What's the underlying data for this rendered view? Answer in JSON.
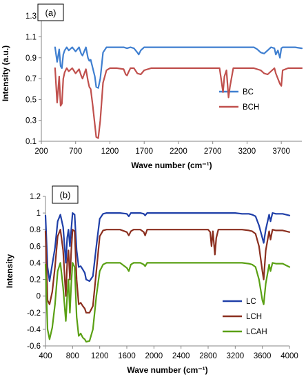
{
  "chart_data": [
    {
      "type": "line",
      "panel_label": "(a)",
      "xlabel": "Wave number (cm⁻¹)",
      "ylabel": "Intensity (a.u.)",
      "xlim": [
        200,
        4000
      ],
      "ylim": [
        0.1,
        1.4
      ],
      "x_ticks": [
        "200",
        "700",
        "1200",
        "1700",
        "2200",
        "2700",
        "3200",
        "3700"
      ],
      "y_ticks": [
        "0.1",
        "0.3",
        "0.5",
        "0.7",
        "0.9",
        "1.1",
        "1.3"
      ],
      "grid": false,
      "legend_position": "center-right",
      "colors": {
        "BC": "#3f7fd0",
        "BCH": "#c0504d"
      },
      "series": [
        {
          "name": "BC",
          "x": [
            400,
            430,
            460,
            480,
            500,
            520,
            540,
            570,
            600,
            650,
            700,
            750,
            780,
            800,
            850,
            880,
            900,
            920,
            950,
            980,
            1000,
            1030,
            1060,
            1100,
            1150,
            1200,
            1400,
            1450,
            1500,
            1550,
            1600,
            1620,
            1650,
            1700,
            1800,
            2000,
            2500,
            3000,
            3200,
            3300,
            3350,
            3400,
            3450,
            3500,
            3550,
            3600,
            3620,
            3650,
            3680,
            3700,
            3720,
            3800,
            3900,
            4000
          ],
          "values": [
            1.0,
            0.86,
            0.98,
            0.82,
            0.8,
            0.93,
            0.97,
            1.0,
            0.97,
            1.0,
            0.96,
            1.0,
            0.94,
            0.92,
            1.0,
            0.9,
            0.87,
            0.88,
            0.8,
            0.72,
            0.62,
            0.61,
            0.7,
            0.95,
            1.0,
            1.0,
            1.0,
            0.99,
            1.0,
            0.99,
            0.95,
            0.93,
            0.97,
            1.0,
            1.0,
            1.0,
            1.0,
            1.0,
            1.0,
            1.0,
            0.98,
            0.95,
            0.94,
            0.97,
            1.0,
            0.99,
            0.93,
            0.97,
            0.9,
            0.99,
            1.0,
            1.0,
            1.0,
            0.99
          ]
        },
        {
          "name": "BCH",
          "x": [
            400,
            430,
            460,
            480,
            500,
            520,
            540,
            570,
            600,
            650,
            700,
            750,
            780,
            800,
            850,
            880,
            900,
            920,
            950,
            980,
            1000,
            1030,
            1060,
            1100,
            1150,
            1200,
            1300,
            1400,
            1430,
            1450,
            1470,
            1500,
            1550,
            1600,
            1650,
            1700,
            1800,
            2000,
            2500,
            2800,
            2850,
            2870,
            2900,
            2930,
            2950,
            3000,
            3200,
            3300,
            3400,
            3450,
            3500,
            3550,
            3600,
            3620,
            3650,
            3680,
            3700,
            3720,
            3800,
            4000
          ],
          "values": [
            0.8,
            0.47,
            0.72,
            0.44,
            0.46,
            0.7,
            0.76,
            0.8,
            0.77,
            0.8,
            0.75,
            0.79,
            0.73,
            0.7,
            0.79,
            0.68,
            0.62,
            0.6,
            0.44,
            0.26,
            0.14,
            0.13,
            0.3,
            0.66,
            0.78,
            0.8,
            0.8,
            0.79,
            0.74,
            0.73,
            0.76,
            0.8,
            0.8,
            0.75,
            0.74,
            0.78,
            0.8,
            0.8,
            0.8,
            0.8,
            0.57,
            0.72,
            0.78,
            0.52,
            0.62,
            0.8,
            0.8,
            0.8,
            0.78,
            0.75,
            0.74,
            0.77,
            0.8,
            0.75,
            0.7,
            0.65,
            0.63,
            0.78,
            0.8,
            0.8
          ]
        }
      ]
    },
    {
      "type": "line",
      "panel_label": "(b)",
      "xlabel": "Wave number (cm⁻¹)",
      "ylabel": "Intensity",
      "xlim": [
        400,
        4000
      ],
      "ylim": [
        -0.6,
        1.2
      ],
      "x_ticks": [
        "400",
        "800",
        "1200",
        "1600",
        "2000",
        "2400",
        "2800",
        "3200",
        "3600",
        "4000"
      ],
      "y_ticks": [
        "-0.6",
        "-0.4",
        "-0.2",
        "0",
        "0.2",
        "0.4",
        "0.6",
        "0.8",
        "1",
        "1.2"
      ],
      "grid": false,
      "legend_position": "center-right",
      "colors": {
        "LC": "#1f3fa8",
        "LCH": "#8b2f1f",
        "LCAH": "#5aa014"
      },
      "series": [
        {
          "name": "LC",
          "x": [
            400,
            430,
            460,
            500,
            540,
            580,
            620,
            660,
            700,
            720,
            740,
            760,
            780,
            800,
            830,
            860,
            890,
            920,
            950,
            980,
            1000,
            1050,
            1100,
            1150,
            1200,
            1250,
            1300,
            1400,
            1500,
            1600,
            1630,
            1660,
            1700,
            1800,
            1850,
            1870,
            1900,
            2000,
            2400,
            2800,
            3000,
            3200,
            3300,
            3400,
            3450,
            3500,
            3550,
            3600,
            3620,
            3650,
            3700,
            3720,
            3750,
            3800,
            3900,
            4000
          ],
          "values": [
            0.97,
            0.35,
            0.18,
            0.38,
            0.58,
            0.9,
            0.98,
            0.83,
            0.4,
            0.7,
            0.8,
            0.6,
            0.8,
            1.0,
            0.98,
            0.55,
            0.35,
            0.36,
            0.32,
            0.28,
            0.2,
            0.18,
            0.24,
            0.6,
            0.93,
            0.99,
            1.0,
            1.0,
            1.0,
            0.99,
            0.96,
            1.0,
            1.0,
            1.0,
            0.99,
            0.97,
            1.0,
            1.0,
            1.0,
            1.0,
            1.0,
            1.0,
            0.99,
            0.99,
            0.98,
            0.96,
            0.85,
            0.7,
            0.64,
            0.8,
            0.98,
            0.9,
            1.0,
            0.99,
            0.99,
            0.97
          ]
        },
        {
          "name": "LCH",
          "x": [
            400,
            430,
            460,
            500,
            540,
            580,
            620,
            660,
            700,
            720,
            740,
            760,
            780,
            800,
            830,
            860,
            890,
            920,
            950,
            980,
            1000,
            1050,
            1100,
            1150,
            1200,
            1250,
            1300,
            1400,
            1500,
            1600,
            1630,
            1660,
            1700,
            1800,
            1850,
            1870,
            1900,
            2000,
            2400,
            2800,
            2830,
            2850,
            2870,
            2900,
            2920,
            2950,
            3000,
            3200,
            3300,
            3400,
            3450,
            3500,
            3550,
            3600,
            3620,
            3650,
            3700,
            3720,
            3750,
            3800,
            3900,
            4000
          ],
          "values": [
            0.78,
            -0.05,
            -0.1,
            0.05,
            0.35,
            0.72,
            0.8,
            0.55,
            0.0,
            0.4,
            0.55,
            0.2,
            0.55,
            0.8,
            0.78,
            0.2,
            -0.1,
            -0.08,
            -0.12,
            -0.15,
            -0.2,
            -0.2,
            -0.12,
            0.3,
            0.72,
            0.79,
            0.8,
            0.8,
            0.8,
            0.77,
            0.73,
            0.78,
            0.8,
            0.8,
            0.77,
            0.73,
            0.8,
            0.8,
            0.8,
            0.8,
            0.77,
            0.6,
            0.78,
            0.5,
            0.7,
            0.8,
            0.8,
            0.8,
            0.8,
            0.79,
            0.78,
            0.75,
            0.6,
            0.3,
            0.2,
            0.55,
            0.78,
            0.68,
            0.8,
            0.79,
            0.79,
            0.77
          ]
        },
        {
          "name": "LCAH",
          "x": [
            400,
            430,
            460,
            500,
            540,
            580,
            620,
            660,
            700,
            720,
            740,
            760,
            780,
            800,
            830,
            860,
            890,
            920,
            950,
            980,
            1000,
            1050,
            1100,
            1150,
            1200,
            1250,
            1300,
            1400,
            1500,
            1600,
            1630,
            1660,
            1700,
            1800,
            1850,
            1870,
            1900,
            2000,
            2400,
            2800,
            3000,
            3200,
            3300,
            3400,
            3450,
            3500,
            3550,
            3600,
            3620,
            3650,
            3700,
            3720,
            3750,
            3800,
            3900,
            4000
          ],
          "values": [
            0.38,
            -0.4,
            -0.52,
            -0.38,
            -0.1,
            0.3,
            0.4,
            0.1,
            -0.3,
            0.0,
            0.2,
            -0.2,
            0.15,
            0.4,
            0.35,
            -0.25,
            -0.48,
            -0.45,
            -0.5,
            -0.52,
            -0.55,
            -0.54,
            -0.4,
            0.0,
            0.3,
            0.38,
            0.4,
            0.4,
            0.4,
            0.34,
            0.3,
            0.38,
            0.4,
            0.4,
            0.38,
            0.36,
            0.4,
            0.4,
            0.4,
            0.4,
            0.4,
            0.4,
            0.4,
            0.39,
            0.38,
            0.35,
            0.2,
            -0.05,
            -0.1,
            0.15,
            0.38,
            0.3,
            0.4,
            0.39,
            0.39,
            0.35
          ]
        }
      ]
    }
  ]
}
